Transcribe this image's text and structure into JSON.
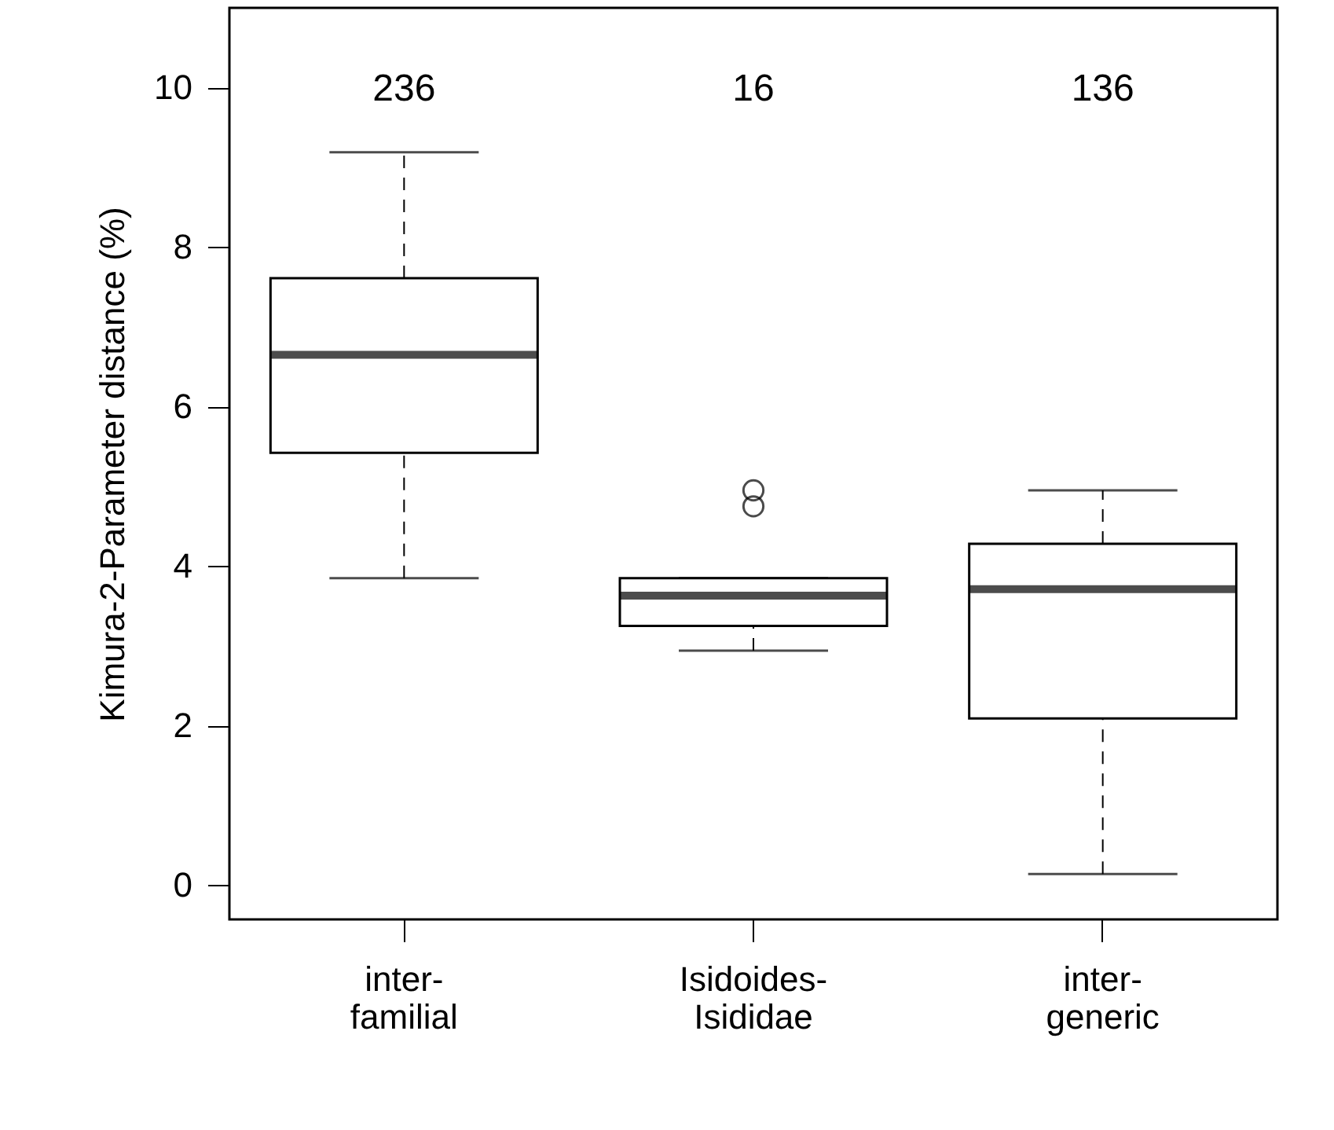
{
  "chart_data": {
    "type": "box",
    "ylabel": "Kimura-2-Parameter distance (%)",
    "categories": [
      "inter-familial",
      "Isidoides-Isididae",
      "inter-generic"
    ],
    "boxes": [
      {
        "low": 3.85,
        "q1": 5.42,
        "median": 6.65,
        "q3": 7.61,
        "high": 9.19
      },
      {
        "low": 2.94,
        "q1": 3.25,
        "median": 3.63,
        "q3": 3.85,
        "high": 3.85,
        "outliers": [
          4.75,
          4.95
        ]
      },
      {
        "low": 0.14,
        "q1": 2.09,
        "median": 3.71,
        "q3": 4.28,
        "high": 4.95
      }
    ],
    "ylim": [
      -0.43,
      11
    ],
    "yticks": [
      0,
      2,
      4,
      6,
      8,
      10
    ],
    "grid": false,
    "annotations": [
      "236",
      "16",
      "136"
    ]
  }
}
